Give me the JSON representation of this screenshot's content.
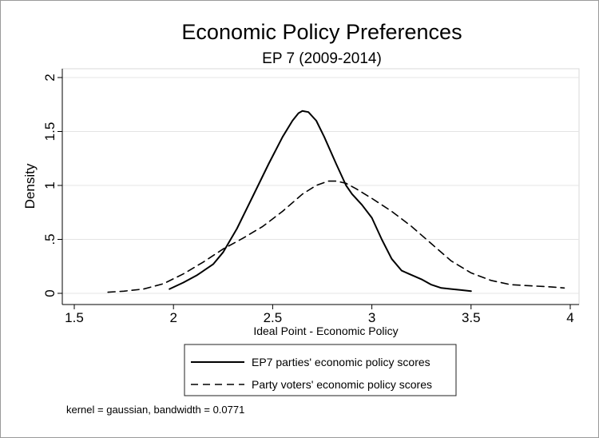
{
  "chart_data": {
    "type": "line",
    "title": "Economic Policy Preferences",
    "subtitle": "EP 7 (2009-2014)",
    "xlabel": "Ideal Point - Economic Policy",
    "ylabel": "Density",
    "xlim": [
      1.5,
      4
    ],
    "ylim": [
      0,
      2
    ],
    "xticks": [
      1.5,
      2,
      2.5,
      3,
      3.5,
      4
    ],
    "xtick_labels": [
      "1.5",
      "2",
      "2.5",
      "3",
      "3.5",
      "4"
    ],
    "yticks": [
      0,
      0.5,
      1,
      1.5,
      2
    ],
    "ytick_labels": [
      "0",
      ".5",
      "1",
      "1.5",
      "2"
    ],
    "grid": true,
    "legend_position": "bottom",
    "note": "kernel = gaussian, bandwidth = 0.0771",
    "series": [
      {
        "name": "EP7 parties' economic policy scores",
        "style": "solid",
        "color": "#000000",
        "x": [
          1.98,
          2.05,
          2.12,
          2.2,
          2.25,
          2.32,
          2.4,
          2.48,
          2.55,
          2.6,
          2.63,
          2.65,
          2.68,
          2.72,
          2.76,
          2.82,
          2.87,
          2.9,
          2.95,
          3.0,
          3.05,
          3.1,
          3.15,
          3.2,
          3.25,
          3.3,
          3.35,
          3.4,
          3.45,
          3.5
        ],
        "y": [
          0.04,
          0.1,
          0.17,
          0.27,
          0.38,
          0.6,
          0.9,
          1.2,
          1.45,
          1.6,
          1.67,
          1.69,
          1.68,
          1.6,
          1.45,
          1.2,
          1.0,
          0.92,
          0.82,
          0.7,
          0.5,
          0.32,
          0.21,
          0.17,
          0.13,
          0.08,
          0.05,
          0.04,
          0.03,
          0.02
        ]
      },
      {
        "name": "Party voters' economic policy scores",
        "style": "dashed",
        "color": "#000000",
        "x": [
          1.67,
          1.75,
          1.85,
          1.95,
          2.05,
          2.15,
          2.25,
          2.35,
          2.45,
          2.55,
          2.65,
          2.72,
          2.78,
          2.82,
          2.87,
          2.92,
          3.0,
          3.1,
          3.2,
          3.3,
          3.4,
          3.5,
          3.6,
          3.7,
          3.8,
          3.9,
          3.97
        ],
        "y": [
          0.01,
          0.02,
          0.04,
          0.09,
          0.18,
          0.29,
          0.41,
          0.51,
          0.62,
          0.76,
          0.92,
          1.0,
          1.04,
          1.04,
          1.02,
          0.97,
          0.88,
          0.76,
          0.62,
          0.46,
          0.3,
          0.19,
          0.12,
          0.08,
          0.07,
          0.06,
          0.05
        ]
      }
    ]
  }
}
